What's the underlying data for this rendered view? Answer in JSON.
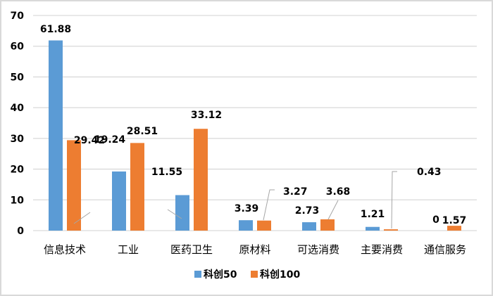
{
  "chart_data": {
    "type": "bar",
    "title": "",
    "xlabel": "",
    "ylabel": "",
    "ylim": [
      0,
      70
    ],
    "yticks": [
      0,
      10,
      20,
      30,
      40,
      50,
      60,
      70
    ],
    "grid": true,
    "legend_position": "bottom",
    "categories": [
      "信息技术",
      "工业",
      "医药卫生",
      "原材料",
      "可选消费",
      "主要消费",
      "通信服务"
    ],
    "series": [
      {
        "name": "科创50",
        "color": "#5b9bd5",
        "values": [
          61.88,
          19.24,
          11.55,
          3.39,
          2.73,
          1.21,
          0
        ]
      },
      {
        "name": "科创100",
        "color": "#ed7d31",
        "values": [
          29.42,
          28.51,
          33.12,
          3.27,
          3.68,
          0.43,
          1.57
        ]
      }
    ],
    "data_labels": {
      "科创50": [
        "61.88",
        "19.24",
        "11.55",
        "3.39",
        "2.73",
        "1.21",
        "0"
      ],
      "科创100": [
        "29.42",
        "28.51",
        "33.12",
        "3.27",
        "3.68",
        "0.43",
        "1.57"
      ]
    }
  }
}
